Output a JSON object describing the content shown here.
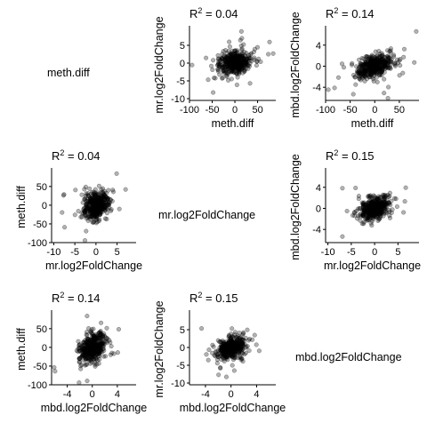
{
  "chart_data": {
    "type": "scatter-matrix",
    "variables": [
      "meth.diff",
      "mr.log2FoldChange",
      "mbd.log2FoldChange"
    ],
    "axes": {
      "meth.diff": {
        "label": "meth.diff",
        "ticks_row1": [
          -100,
          -50,
          0,
          50
        ],
        "ticks_row2": [
          -100,
          -50,
          0,
          50
        ],
        "ticks_row3": [
          -100,
          -50,
          0,
          50
        ]
      },
      "mr.log2FoldChange": {
        "label": "mr.log2FoldChange",
        "ticks_y": [
          -10,
          -5,
          0,
          5
        ],
        "ticks_x": [
          -10,
          -5,
          0,
          5
        ]
      },
      "mbd.log2FoldChange": {
        "label": "mbd.log2FoldChange",
        "ticks_y": [
          -4,
          0,
          4
        ],
        "ticks_x": [
          -4,
          0,
          4
        ]
      }
    },
    "panels": [
      {
        "row": 0,
        "col": 1,
        "x": "meth.diff",
        "y": "mr.log2FoldChange",
        "r2_prefix": "R",
        "r2_sup": "2",
        "r2_value": " = 0.04",
        "xlim": [
          -100,
          90
        ],
        "ylim": [
          -10.5,
          9.5
        ],
        "xticks": [
          -100,
          -50,
          0,
          50
        ],
        "yticks": [
          -10,
          -5,
          0,
          5
        ]
      },
      {
        "row": 0,
        "col": 2,
        "x": "meth.diff",
        "y": "mbd.log2FoldChange",
        "r2_prefix": "R",
        "r2_sup": "2",
        "r2_value": " = 0.14",
        "xlim": [
          -100,
          90
        ],
        "ylim": [
          -6.5,
          7
        ],
        "xticks": [
          -100,
          -50,
          0,
          50
        ],
        "yticks": [
          -4,
          0,
          4
        ]
      },
      {
        "row": 1,
        "col": 0,
        "x": "mr.log2FoldChange",
        "y": "meth.diff",
        "r2_prefix": "R",
        "r2_sup": "2",
        "r2_value": " = 0.04",
        "xlim": [
          -10.5,
          9.5
        ],
        "ylim": [
          -100,
          90
        ],
        "xticks": [
          -10,
          -5,
          0,
          5
        ],
        "yticks": [
          -100,
          -50,
          0,
          50
        ]
      },
      {
        "row": 1,
        "col": 2,
        "x": "mr.log2FoldChange",
        "y": "mbd.log2FoldChange",
        "r2_prefix": "R",
        "r2_sup": "2",
        "r2_value": " = 0.15",
        "xlim": [
          -10.5,
          9.5
        ],
        "ylim": [
          -6.5,
          7
        ],
        "xticks": [
          -10,
          -5,
          0,
          5
        ],
        "yticks": [
          -4,
          0,
          4
        ]
      },
      {
        "row": 2,
        "col": 0,
        "x": "mbd.log2FoldChange",
        "y": "meth.diff",
        "r2_prefix": "R",
        "r2_sup": "2",
        "r2_value": " = 0.14",
        "xlim": [
          -6.5,
          7
        ],
        "ylim": [
          -100,
          90
        ],
        "xticks": [
          -4,
          0,
          4
        ],
        "yticks": [
          -100,
          -50,
          0,
          50
        ]
      },
      {
        "row": 2,
        "col": 1,
        "x": "mbd.log2FoldChange",
        "y": "mr.log2FoldChange",
        "r2_prefix": "R",
        "r2_sup": "2",
        "r2_value": " = 0.15",
        "xlim": [
          -6.5,
          7
        ],
        "ylim": [
          -10.5,
          9.5
        ],
        "xticks": [
          -4,
          0,
          4
        ],
        "yticks": [
          -10,
          -5,
          0,
          5
        ]
      }
    ],
    "diagonal_labels": [
      "meth.diff",
      "mr.log2FoldChange",
      "mbd.log2FoldChange"
    ],
    "point_color": "#000000",
    "point_opacity": 0.3,
    "grid": false
  }
}
